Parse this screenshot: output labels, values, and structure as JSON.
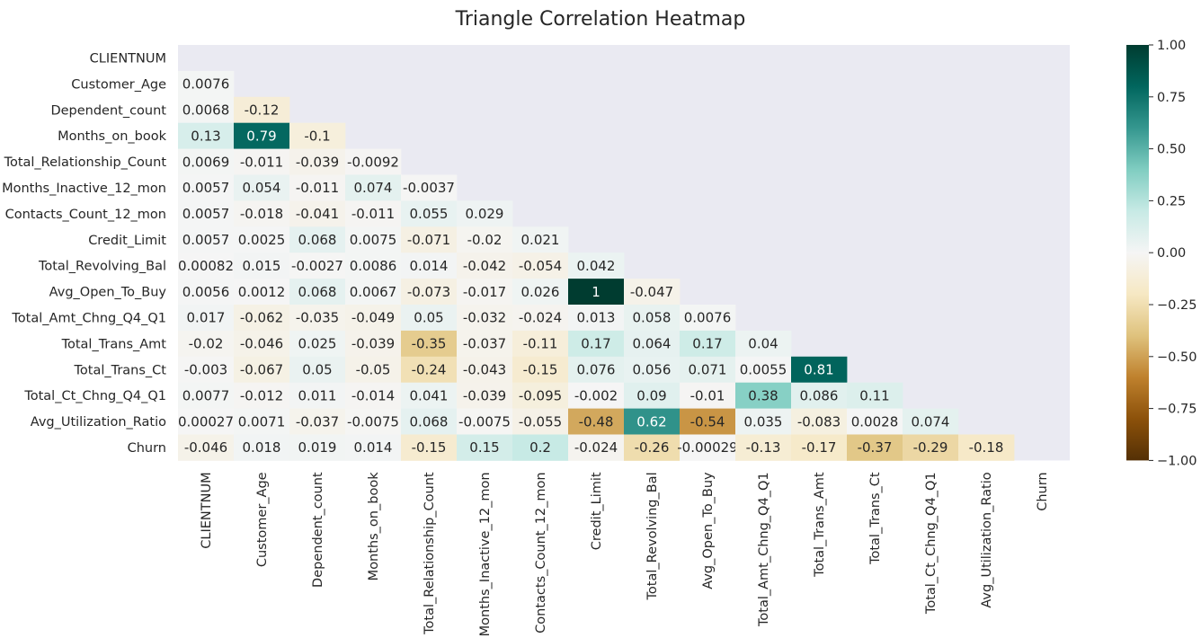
{
  "chart_data": {
    "type": "heatmap",
    "title": "Triangle Correlation Heatmap",
    "labels": [
      "CLIENTNUM",
      "Customer_Age",
      "Dependent_count",
      "Months_on_book",
      "Total_Relationship_Count",
      "Months_Inactive_12_mon",
      "Contacts_Count_12_mon",
      "Credit_Limit",
      "Total_Revolving_Bal",
      "Avg_Open_To_Buy",
      "Total_Amt_Chng_Q4_Q1",
      "Total_Trans_Amt",
      "Total_Trans_Ct",
      "Total_Ct_Chng_Q4_Q1",
      "Avg_Utilization_Ratio",
      "Churn"
    ],
    "mask": "upper triangle including diagonal",
    "cells": [
      [],
      [
        "0.0076"
      ],
      [
        "0.0068",
        "-0.12"
      ],
      [
        "0.13",
        "0.79",
        "-0.1"
      ],
      [
        "0.0069",
        "-0.011",
        "-0.039",
        "-0.0092"
      ],
      [
        "0.0057",
        "0.054",
        "-0.011",
        "0.074",
        "-0.0037"
      ],
      [
        "0.0057",
        "-0.018",
        "-0.041",
        "-0.011",
        "0.055",
        "0.029"
      ],
      [
        "0.0057",
        "0.0025",
        "0.068",
        "0.0075",
        "-0.071",
        "-0.02",
        "0.021"
      ],
      [
        "0.00082",
        "0.015",
        "-0.0027",
        "0.0086",
        "0.014",
        "-0.042",
        "-0.054",
        "0.042"
      ],
      [
        "0.0056",
        "0.0012",
        "0.068",
        "0.0067",
        "-0.073",
        "-0.017",
        "0.026",
        "1",
        "-0.047"
      ],
      [
        "0.017",
        "-0.062",
        "-0.035",
        "-0.049",
        "0.05",
        "-0.032",
        "-0.024",
        "0.013",
        "0.058",
        "0.0076"
      ],
      [
        "-0.02",
        "-0.046",
        "0.025",
        "-0.039",
        "-0.35",
        "-0.037",
        "-0.11",
        "0.17",
        "0.064",
        "0.17",
        "0.04"
      ],
      [
        "-0.003",
        "-0.067",
        "0.05",
        "-0.05",
        "-0.24",
        "-0.043",
        "-0.15",
        "0.076",
        "0.056",
        "0.071",
        "0.0055",
        "0.81"
      ],
      [
        "0.0077",
        "-0.012",
        "0.011",
        "-0.014",
        "0.041",
        "-0.039",
        "-0.095",
        "-0.002",
        "0.09",
        "-0.01",
        "0.38",
        "0.086",
        "0.11"
      ],
      [
        "0.00027",
        "0.0071",
        "-0.037",
        "-0.0075",
        "0.068",
        "-0.0075",
        "-0.055",
        "-0.48",
        "0.62",
        "-0.54",
        "0.035",
        "-0.083",
        "0.0028",
        "0.074"
      ],
      [
        "-0.046",
        "0.018",
        "0.019",
        "0.014",
        "-0.15",
        "0.15",
        "0.2",
        "-0.024",
        "-0.26",
        "-0.00029",
        "-0.13",
        "-0.17",
        "-0.37",
        "-0.29",
        "-0.18"
      ]
    ],
    "colorbar": {
      "vmin": -1,
      "vmax": 1,
      "ticks": [
        "1.00",
        "0.75",
        "0.50",
        "0.25",
        "0.00",
        "−0.25",
        "−0.50",
        "−0.75",
        "−1.00"
      ],
      "tick_values": [
        1,
        0.75,
        0.5,
        0.25,
        0,
        -0.25,
        -0.5,
        -0.75,
        -1
      ]
    },
    "colormap": "BrBG",
    "colormap_stops": [
      "#543005",
      "#8c510a",
      "#bf812d",
      "#dfc27d",
      "#f6e8c3",
      "#f5f5f5",
      "#c7eae5",
      "#80cdc1",
      "#35978f",
      "#01665e",
      "#003c30"
    ],
    "background_color": "#eaeaf2"
  }
}
